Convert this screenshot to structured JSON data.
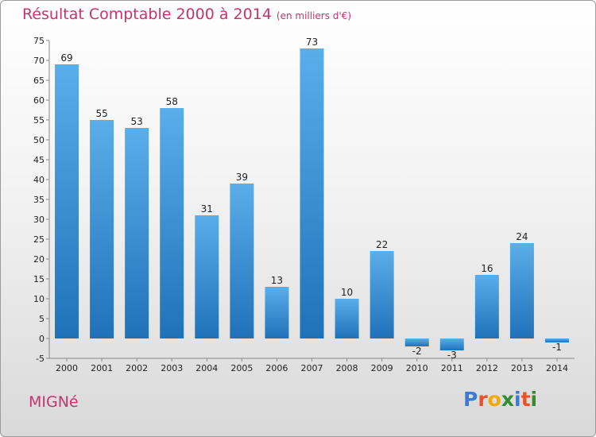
{
  "header": {
    "title": "Résultat Comptable 2000 à 2014",
    "subtitle": "(en milliers d'€)"
  },
  "footer": {
    "commune": "MIGNé",
    "brand": "Proxiti",
    "brand_letters": [
      "P",
      "r",
      "o",
      "x",
      "i",
      "t",
      "i"
    ],
    "brand_colors": [
      "#3a7bd5",
      "#e8532a",
      "#f2a900",
      "#2f8f2f",
      "#3a7bd5",
      "#e8532a",
      "#2f8f2f"
    ]
  },
  "chart_data": {
    "type": "bar",
    "title": "Résultat Comptable 2000 à 2014",
    "subtitle": "(en milliers d'€)",
    "xlabel": "",
    "ylabel": "",
    "categories": [
      "2000",
      "2001",
      "2002",
      "2003",
      "2004",
      "2005",
      "2006",
      "2007",
      "2008",
      "2009",
      "2010",
      "2011",
      "2012",
      "2013",
      "2014"
    ],
    "values": [
      69,
      55,
      53,
      58,
      31,
      39,
      13,
      73,
      10,
      22,
      -2,
      -3,
      16,
      24,
      -1
    ],
    "ylim": [
      -5,
      75
    ],
    "yticks": [
      -5,
      0,
      5,
      10,
      15,
      20,
      25,
      30,
      35,
      40,
      45,
      50,
      55,
      60,
      65,
      70,
      75
    ],
    "grid": false,
    "legend": "none",
    "colors": {
      "bar_light": "#5aaeea",
      "bar_dark": "#1f72b8",
      "title": "#c8326e"
    }
  }
}
